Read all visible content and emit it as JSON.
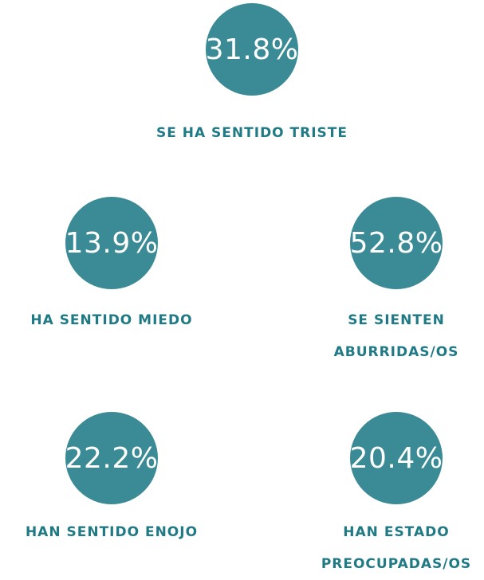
{
  "items": [
    {
      "value": "31.8%",
      "label": "SE HA SENTIDO TRISTE"
    },
    {
      "value": "13.9%",
      "label": "HA SENTIDO MIEDO"
    },
    {
      "value": "52.8%",
      "label": "SE SIENTEN ABURRIDAS/OS"
    },
    {
      "value": "22.2%",
      "label": "HAN SENTIDO ENOJO"
    },
    {
      "value": "20.4%",
      "label": "HAN ESTADO PREOCUPADAS/OS"
    }
  ]
}
